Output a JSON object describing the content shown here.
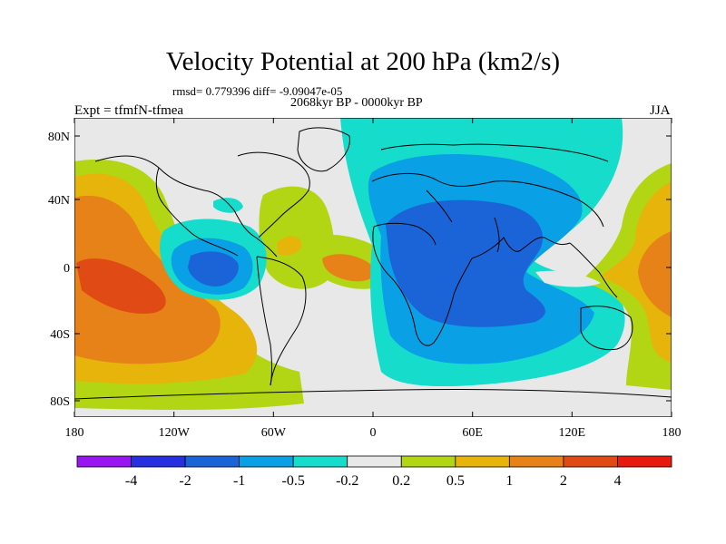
{
  "title": "Velocity Potential at 200 hPa (km2/s)",
  "stats": "rmsd= 0.779396 diff= -9.09047e-05",
  "period": "2068kyr BP - 0000kyr BP",
  "experiment": "Expt = tfmfN-tfmea",
  "season": "JJA",
  "lat_labels": [
    "80N",
    "40N",
    "0",
    "40S",
    "80S"
  ],
  "lon_labels": [
    "180",
    "120W",
    "60W",
    "0",
    "60E",
    "120E",
    "180"
  ],
  "colorbar": {
    "labels": [
      "-4",
      "-2",
      "-1",
      "-0.5",
      "-0.2",
      "0.2",
      "0.5",
      "1",
      "2",
      "4"
    ],
    "colors": [
      "#9a16f0",
      "#2630e0",
      "#1a64d8",
      "#0aa0e6",
      "#16dccc",
      "#e8e8e8",
      "#b2d614",
      "#e6b40a",
      "#e68218",
      "#e04a14",
      "#e81a10"
    ]
  },
  "palette": {
    "ocean_bg": "#e8e8e8",
    "teal": "#16dccc",
    "lightblue": "#0aa0e6",
    "blue": "#1a64d8",
    "green": "#b2d614",
    "yellow": "#e6b40a",
    "orange": "#e68218",
    "red": "#e04a14"
  }
}
